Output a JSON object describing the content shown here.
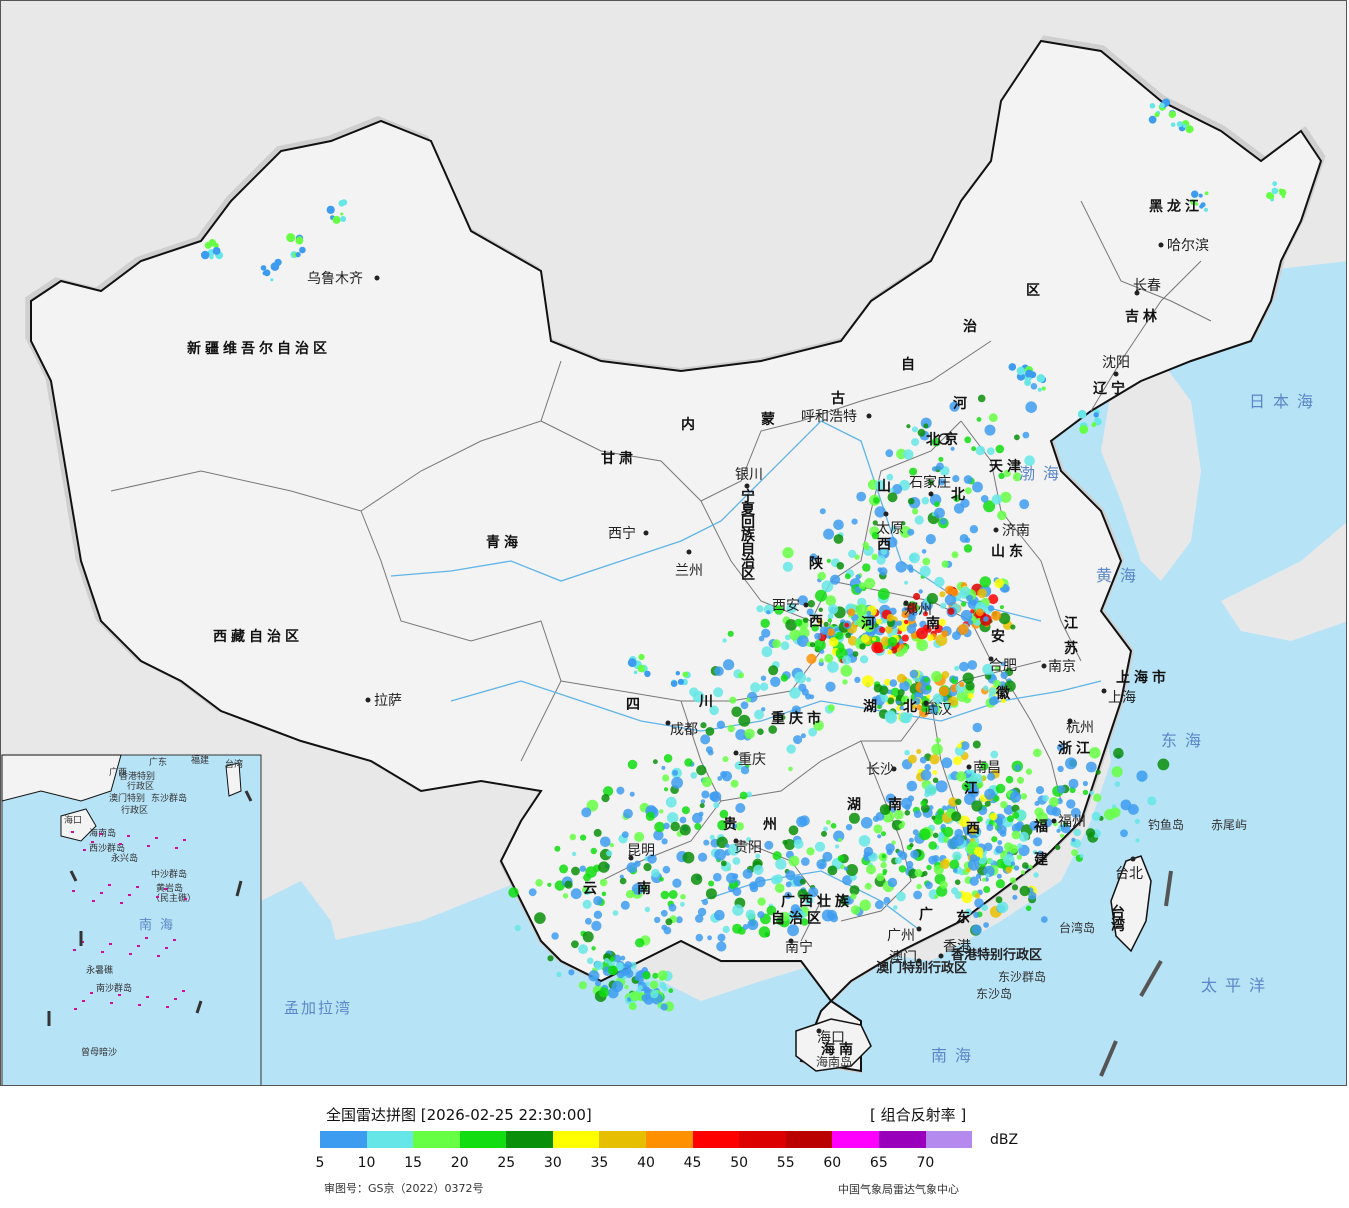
{
  "map": {
    "provinces": [
      {
        "id": "xinjiang",
        "name": "新疆维吾尔自治区"
      },
      {
        "id": "xizang",
        "name": "西藏自治区"
      },
      {
        "id": "qinghai",
        "name": "青海"
      },
      {
        "id": "gansu",
        "name": "甘肃"
      },
      {
        "id": "neimenggu_1",
        "name": "内"
      },
      {
        "id": "neimenggu_2",
        "name": "蒙"
      },
      {
        "id": "neimenggu_3",
        "name": "古"
      },
      {
        "id": "neimenggu_4",
        "name": "自"
      },
      {
        "id": "neimenggu_5",
        "name": "治"
      },
      {
        "id": "neimenggu_6",
        "name": "区"
      },
      {
        "id": "heilongjiang",
        "name": "黑龙江"
      },
      {
        "id": "jilin",
        "name": "吉林"
      },
      {
        "id": "liaoning",
        "name": "辽宁"
      },
      {
        "id": "hebei_1",
        "name": "河"
      },
      {
        "id": "hebei_2",
        "name": "北"
      },
      {
        "id": "shanxi_1",
        "name": "山"
      },
      {
        "id": "shanxi_2",
        "name": "西"
      },
      {
        "id": "shandong",
        "name": "山东"
      },
      {
        "id": "henan_1",
        "name": "河"
      },
      {
        "id": "henan_2",
        "name": "南"
      },
      {
        "id": "shaanxi_1",
        "name": "陕"
      },
      {
        "id": "shaanxi_2",
        "name": "西"
      },
      {
        "id": "ningxia",
        "name": "宁夏回族自治区"
      },
      {
        "id": "sichuan_1",
        "name": "四"
      },
      {
        "id": "sichuan_2",
        "name": "川"
      },
      {
        "id": "chongqing",
        "name": "重庆市"
      },
      {
        "id": "hubei_1",
        "name": "湖"
      },
      {
        "id": "hubei_2",
        "name": "北"
      },
      {
        "id": "hunan_1",
        "name": "湖"
      },
      {
        "id": "hunan_2",
        "name": "南"
      },
      {
        "id": "anhui_1",
        "name": "安"
      },
      {
        "id": "anhui_2",
        "name": "徽"
      },
      {
        "id": "jiangsu_1",
        "name": "江"
      },
      {
        "id": "jiangsu_2",
        "name": "苏"
      },
      {
        "id": "shanghai",
        "name": "上海市"
      },
      {
        "id": "zhejiang",
        "name": "浙江"
      },
      {
        "id": "jiangxi_1",
        "name": "江"
      },
      {
        "id": "jiangxi_2",
        "name": "西"
      },
      {
        "id": "fujian_1",
        "name": "福"
      },
      {
        "id": "fujian_2",
        "name": "建"
      },
      {
        "id": "guangdong_1",
        "name": "广"
      },
      {
        "id": "guangdong_2",
        "name": "东"
      },
      {
        "id": "guangxi_1",
        "name": "广西壮族"
      },
      {
        "id": "guangxi_2",
        "name": "自治区"
      },
      {
        "id": "guizhou_1",
        "name": "贵"
      },
      {
        "id": "guizhou_2",
        "name": "州"
      },
      {
        "id": "yunnan_1",
        "name": "云"
      },
      {
        "id": "yunnan_2",
        "name": "南"
      },
      {
        "id": "hainan",
        "name": "海南"
      },
      {
        "id": "taiwan",
        "name": "台湾"
      },
      {
        "id": "tianjin",
        "name": "天津"
      },
      {
        "id": "beijing",
        "name": "北京"
      }
    ],
    "cities": [
      {
        "id": "urumqi",
        "name": "乌鲁木齐"
      },
      {
        "id": "lhasa",
        "name": "拉萨"
      },
      {
        "id": "xining",
        "name": "西宁"
      },
      {
        "id": "lanzhou",
        "name": "兰州"
      },
      {
        "id": "yinchuan",
        "name": "银川"
      },
      {
        "id": "hohhot",
        "name": "呼和浩特"
      },
      {
        "id": "harbin",
        "name": "哈尔滨"
      },
      {
        "id": "changchun",
        "name": "长春"
      },
      {
        "id": "shenyang",
        "name": "沈阳"
      },
      {
        "id": "shijiazhuang",
        "name": "石家庄"
      },
      {
        "id": "taiyuan",
        "name": "太原"
      },
      {
        "id": "jinan",
        "name": "济南"
      },
      {
        "id": "zhengzhou",
        "name": "郑州"
      },
      {
        "id": "xian",
        "name": "西安"
      },
      {
        "id": "chengdu",
        "name": "成都"
      },
      {
        "id": "chongqing_c",
        "name": "重庆"
      },
      {
        "id": "wuhan",
        "name": "武汉"
      },
      {
        "id": "hefei",
        "name": "合肥"
      },
      {
        "id": "nanjing",
        "name": "南京"
      },
      {
        "id": "shanghai_c",
        "name": "上海"
      },
      {
        "id": "hangzhou",
        "name": "杭州"
      },
      {
        "id": "nanchang",
        "name": "南昌"
      },
      {
        "id": "changsha",
        "name": "长沙"
      },
      {
        "id": "fuzhou",
        "name": "福州"
      },
      {
        "id": "taipei",
        "name": "台北"
      },
      {
        "id": "guiyang",
        "name": "贵阳"
      },
      {
        "id": "kunming",
        "name": "昆明"
      },
      {
        "id": "nanning",
        "name": "南宁"
      },
      {
        "id": "guangzhou",
        "name": "广州"
      },
      {
        "id": "hongkong_c",
        "name": "香港"
      },
      {
        "id": "macau_c",
        "name": "澳门"
      },
      {
        "id": "haikou",
        "name": "海口"
      }
    ],
    "special_regions": [
      {
        "id": "hk",
        "name": "香港特别行政区"
      },
      {
        "id": "mo",
        "name": "澳门特别行政区"
      }
    ],
    "islands": [
      {
        "id": "diaoyu",
        "name": "钓鱼岛"
      },
      {
        "id": "chiwei",
        "name": "赤尾屿"
      },
      {
        "id": "taiwan_isl",
        "name": "台湾岛"
      },
      {
        "id": "dongsha_q",
        "name": "东沙群岛"
      },
      {
        "id": "dongsha",
        "name": "东沙岛"
      },
      {
        "id": "hainan_isl",
        "name": "海南岛"
      }
    ],
    "seas": [
      {
        "id": "bohai",
        "name": "渤海"
      },
      {
        "id": "huanghai",
        "name": "黄海"
      },
      {
        "id": "donghai",
        "name": "东海"
      },
      {
        "id": "nanhai",
        "name": "南海"
      },
      {
        "id": "riben",
        "name": "日本海"
      },
      {
        "id": "taipingyang",
        "name": "太平洋"
      }
    ],
    "countries": [
      {
        "id": "bengal",
        "name": "孟加拉湾"
      }
    ],
    "inset": {
      "labels": [
        "广西",
        "广东",
        "台湾",
        "香港特别",
        "行政区",
        "澳门特别",
        "行政区",
        "东沙群岛",
        "海口",
        "海南岛",
        "西沙群岛",
        "永兴岛",
        "中沙群岛",
        "黄岩岛",
        "（民主礁）",
        "永暑礁",
        "南沙群岛",
        "曾母暗沙",
        "福建"
      ],
      "sea": "南海"
    }
  },
  "legend": {
    "title": "全国雷达拼图 [2026-02-25 22:30:00]",
    "product": "[ 组合反射率 ]",
    "unit": "dBZ",
    "colors": [
      "#3d9cf0",
      "#66e6e6",
      "#66ff44",
      "#11dd11",
      "#098f09",
      "#ffff00",
      "#e6c000",
      "#ff9000",
      "#ff0000",
      "#dd0000",
      "#bb0000",
      "#ff00ff",
      "#9900bb",
      "#b48aee"
    ],
    "ticks": [
      "5",
      "10",
      "15",
      "20",
      "25",
      "30",
      "35",
      "40",
      "45",
      "50",
      "55",
      "60",
      "65",
      "70"
    ],
    "review_no": "审图号：GS京（2022）0372号",
    "producer": "中国气象局雷达气象中心"
  }
}
